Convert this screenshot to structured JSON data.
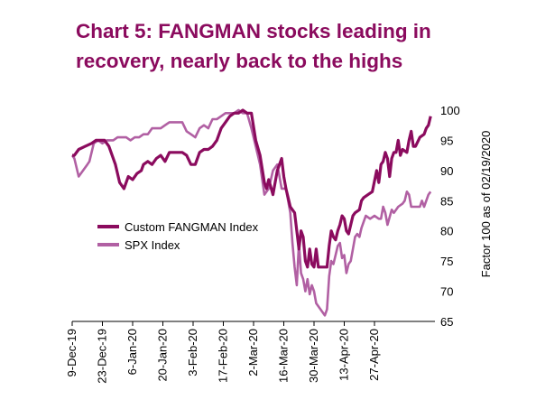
{
  "chart_data": {
    "type": "line",
    "title": "Chart 5: FANGMAN stocks leading in recovery, nearly back to the highs",
    "ylabel": "Factor 100 as of 02/19/2020",
    "xlabel": "",
    "ylim": [
      65,
      100
    ],
    "yticks": [
      65,
      70,
      75,
      80,
      85,
      90,
      95,
      100
    ],
    "xticks": [
      "9-Dec-19",
      "23-Dec-19",
      "6-Jan-20",
      "20-Jan-20",
      "3-Feb-20",
      "17-Feb-20",
      "2-Mar-20",
      "16-Mar-20",
      "30-Mar-20",
      "13-Apr-20",
      "27-Apr-20"
    ],
    "x_range_days": [
      0,
      148
    ],
    "grid": false,
    "legend_position": "left-middle",
    "series": [
      {
        "name": "Custom FANGMAN Index",
        "color": "#8b0b5e",
        "points": [
          [
            0,
            92.5
          ],
          [
            1,
            92.5
          ],
          [
            3,
            93.5
          ],
          [
            6,
            94
          ],
          [
            9,
            94.5
          ],
          [
            11,
            95
          ],
          [
            14,
            95
          ],
          [
            15,
            95
          ],
          [
            17,
            94
          ],
          [
            20,
            91
          ],
          [
            22,
            88
          ],
          [
            24,
            87
          ],
          [
            26,
            89
          ],
          [
            28,
            88.5
          ],
          [
            30,
            89.5
          ],
          [
            32,
            90
          ],
          [
            33,
            91
          ],
          [
            35,
            91.5
          ],
          [
            37,
            91
          ],
          [
            39,
            92
          ],
          [
            41,
            92.5
          ],
          [
            43,
            91.5
          ],
          [
            45,
            93
          ],
          [
            47,
            93
          ],
          [
            49,
            93
          ],
          [
            51,
            93
          ],
          [
            53,
            92.5
          ],
          [
            55,
            91
          ],
          [
            57,
            91
          ],
          [
            59,
            93
          ],
          [
            61,
            93.5
          ],
          [
            63,
            93.5
          ],
          [
            65,
            94
          ],
          [
            67,
            95
          ],
          [
            69,
            97
          ],
          [
            71,
            98
          ],
          [
            73,
            99
          ],
          [
            75,
            99.5
          ],
          [
            77,
            99.5
          ],
          [
            79,
            100
          ],
          [
            81,
            99.5
          ],
          [
            83,
            99.5
          ],
          [
            85,
            95
          ],
          [
            87,
            92.5
          ],
          [
            89,
            88
          ],
          [
            90,
            87
          ],
          [
            91,
            88.5
          ],
          [
            93,
            86
          ],
          [
            95,
            90
          ],
          [
            97,
            92
          ],
          [
            98,
            89
          ],
          [
            99,
            87
          ],
          [
            101,
            84
          ],
          [
            103,
            83
          ],
          [
            104,
            80
          ],
          [
            105,
            77
          ],
          [
            106,
            80
          ],
          [
            107,
            79
          ],
          [
            108,
            75
          ],
          [
            109,
            74
          ],
          [
            110,
            77
          ],
          [
            111,
            74.5
          ],
          [
            112,
            74
          ],
          [
            113,
            77
          ],
          [
            114,
            74
          ],
          [
            116,
            74
          ],
          [
            118,
            74
          ],
          [
            119,
            77.5
          ],
          [
            120,
            80
          ],
          [
            121,
            79
          ],
          [
            122,
            78.5
          ],
          [
            123,
            80
          ],
          [
            124,
            81
          ],
          [
            125,
            82.5
          ],
          [
            126,
            82
          ],
          [
            127,
            80
          ],
          [
            128,
            79.5
          ],
          [
            129,
            81
          ],
          [
            130,
            82.5
          ],
          [
            131,
            83
          ],
          [
            133,
            83.5
          ],
          [
            134,
            85
          ],
          [
            135,
            85.5
          ],
          [
            137,
            86
          ],
          [
            139,
            86.5
          ],
          [
            141,
            90
          ],
          [
            142,
            88
          ],
          [
            143,
            91
          ],
          [
            144,
            91.5
          ],
          [
            145,
            93
          ],
          [
            146,
            92
          ],
          [
            147,
            89
          ],
          [
            148,
            92
          ],
          [
            149,
            93
          ],
          [
            150,
            93
          ],
          [
            151,
            95
          ],
          [
            152,
            92.5
          ],
          [
            153,
            93.5
          ],
          [
            155,
            93
          ],
          [
            156,
            95
          ],
          [
            157,
            96.5
          ],
          [
            158,
            94
          ],
          [
            159,
            94
          ],
          [
            161,
            95.5
          ],
          [
            163,
            96
          ],
          [
            164,
            97
          ],
          [
            165,
            97.5
          ],
          [
            166,
            99
          ]
        ]
      },
      {
        "name": "SPX Index",
        "color": "#b160a3",
        "points": [
          [
            0,
            92.5
          ],
          [
            1,
            92
          ],
          [
            3,
            89
          ],
          [
            5,
            90
          ],
          [
            7,
            91
          ],
          [
            8,
            91.5
          ],
          [
            10,
            94.5
          ],
          [
            12,
            95
          ],
          [
            14,
            94.5
          ],
          [
            16,
            95
          ],
          [
            17,
            95
          ],
          [
            19,
            95
          ],
          [
            21,
            95.5
          ],
          [
            23,
            95.5
          ],
          [
            25,
            95.5
          ],
          [
            27,
            95
          ],
          [
            29,
            95.5
          ],
          [
            31,
            95.5
          ],
          [
            33,
            96
          ],
          [
            35,
            96
          ],
          [
            37,
            97
          ],
          [
            39,
            97
          ],
          [
            41,
            97
          ],
          [
            43,
            97.5
          ],
          [
            45,
            98
          ],
          [
            47,
            98
          ],
          [
            49,
            98
          ],
          [
            51,
            98
          ],
          [
            53,
            96.5
          ],
          [
            55,
            96
          ],
          [
            57,
            95.5
          ],
          [
            59,
            97
          ],
          [
            61,
            97.5
          ],
          [
            63,
            97
          ],
          [
            65,
            98.5
          ],
          [
            67,
            98.5
          ],
          [
            69,
            99
          ],
          [
            71,
            99.5
          ],
          [
            73,
            99.5
          ],
          [
            75,
            99.5
          ],
          [
            77,
            100
          ],
          [
            79,
            99.5
          ],
          [
            81,
            99.5
          ],
          [
            83,
            97
          ],
          [
            85,
            94
          ],
          [
            87,
            91
          ],
          [
            89,
            86
          ],
          [
            91,
            87
          ],
          [
            93,
            90
          ],
          [
            95,
            91
          ],
          [
            97,
            87
          ],
          [
            99,
            87
          ],
          [
            101,
            83
          ],
          [
            102,
            78
          ],
          [
            103,
            74
          ],
          [
            104,
            71
          ],
          [
            105,
            78
          ],
          [
            106,
            73
          ],
          [
            107,
            72
          ],
          [
            108,
            70
          ],
          [
            109,
            72
          ],
          [
            110,
            69.5
          ],
          [
            111,
            71
          ],
          [
            112,
            70
          ],
          [
            113,
            68
          ],
          [
            114,
            67.5
          ],
          [
            115,
            67
          ],
          [
            116,
            66.5
          ],
          [
            117,
            66
          ],
          [
            118,
            67
          ],
          [
            119,
            72.5
          ],
          [
            120,
            75
          ],
          [
            121,
            74.5
          ],
          [
            122,
            76
          ],
          [
            123,
            77.5
          ],
          [
            124,
            78
          ],
          [
            125,
            75.5
          ],
          [
            126,
            76
          ],
          [
            127,
            73
          ],
          [
            128,
            74.5
          ],
          [
            129,
            75
          ],
          [
            130,
            77
          ],
          [
            131,
            79
          ],
          [
            132,
            79.5
          ],
          [
            133,
            79
          ],
          [
            134,
            80.5
          ],
          [
            135,
            81.5
          ],
          [
            136,
            82.5
          ],
          [
            138,
            82
          ],
          [
            140,
            82.5
          ],
          [
            142,
            82
          ],
          [
            143,
            82
          ],
          [
            144,
            84
          ],
          [
            145,
            83
          ],
          [
            146,
            81
          ],
          [
            148,
            83.5
          ],
          [
            149,
            83
          ],
          [
            151,
            84
          ],
          [
            153,
            84.5
          ],
          [
            154,
            85
          ],
          [
            155,
            86.5
          ],
          [
            156,
            86
          ],
          [
            157,
            84
          ],
          [
            159,
            84
          ],
          [
            161,
            84
          ],
          [
            162,
            85
          ],
          [
            163,
            84
          ],
          [
            164,
            85
          ],
          [
            165,
            86
          ],
          [
            166,
            86.5
          ]
        ]
      }
    ]
  },
  "legend": {
    "fangman_label": "Custom FANGMAN Index",
    "spx_label": "SPX Index"
  }
}
